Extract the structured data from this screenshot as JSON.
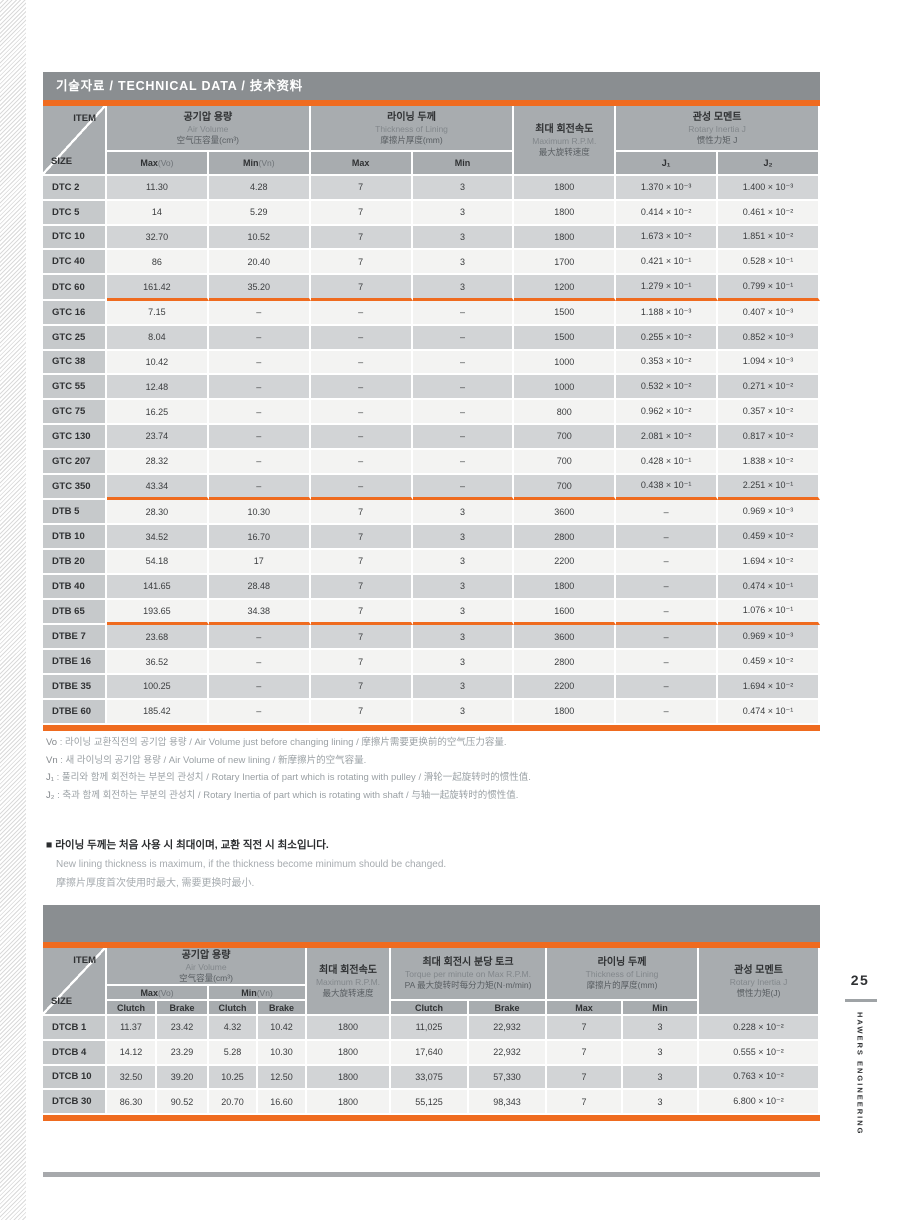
{
  "page": {
    "title": "기술자료 / TECHNICAL DATA / 技术资料",
    "page_number": "25",
    "brand": "HAWERS ENGINEERING",
    "colon": ":",
    "colors": {
      "orange": "#EF6B1F",
      "title_bar_gray": "#8A8E91",
      "header_gray": "#A8ACAF",
      "label_gray": "#C6C9CB",
      "row_gray": "#D2D4D6",
      "row_light": "#F3F3F2"
    }
  },
  "table1": {
    "corner": {
      "item": "ITEM",
      "size": "SIZE"
    },
    "head": {
      "air": {
        "ko": "공기압 용량",
        "en": "Air Volume",
        "cn": "空气压容量(cm³)"
      },
      "lining": {
        "ko": "라이닝 두께",
        "en": "Thickness of Lining",
        "cn": "摩擦片厚度(mm)"
      },
      "rpm": {
        "ko": "최대 회전속도",
        "en": "Maximum R.P.M.",
        "cn": "最大旋转速度"
      },
      "inertia": {
        "ko": "관성 모멘트",
        "en": "Rotary Inertia J",
        "cn": "惯性力矩 J"
      },
      "subs": {
        "max_vo_b": "Max",
        "max_vo_n": "(Vo)",
        "min_vn_b": "Min",
        "min_vn_n": "(Vn)",
        "max": "Max",
        "min": "Min",
        "j1": "J₁",
        "j2": "J₂"
      }
    },
    "rows": [
      {
        "size": "DTC 2",
        "values": [
          "11.30",
          "4.28",
          "7",
          "3",
          "1800",
          "1.370 × 10⁻³",
          "1.400 × 10⁻³"
        ],
        "group_end": false
      },
      {
        "size": "DTC 5",
        "values": [
          "14",
          "5.29",
          "7",
          "3",
          "1800",
          "0.414 × 10⁻²",
          "0.461 × 10⁻²"
        ],
        "group_end": false
      },
      {
        "size": "DTC 10",
        "values": [
          "32.70",
          "10.52",
          "7",
          "3",
          "1800",
          "1.673 × 10⁻²",
          "1.851 × 10⁻²"
        ],
        "group_end": false
      },
      {
        "size": "DTC 40",
        "values": [
          "86",
          "20.40",
          "7",
          "3",
          "1700",
          "0.421 × 10⁻¹",
          "0.528 × 10⁻¹"
        ],
        "group_end": false
      },
      {
        "size": "DTC 60",
        "values": [
          "161.42",
          "35.20",
          "7",
          "3",
          "1200",
          "1.279 × 10⁻¹",
          "0.799 × 10⁻¹"
        ],
        "group_end": true
      },
      {
        "size": "GTC 16",
        "values": [
          "7.15",
          "–",
          "–",
          "–",
          "1500",
          "1.188 × 10⁻³",
          "0.407 × 10⁻³"
        ],
        "group_end": false
      },
      {
        "size": "GTC 25",
        "values": [
          "8.04",
          "–",
          "–",
          "–",
          "1500",
          "0.255 × 10⁻²",
          "0.852 × 10⁻³"
        ],
        "group_end": false
      },
      {
        "size": "GTC 38",
        "values": [
          "10.42",
          "–",
          "–",
          "–",
          "1000",
          "0.353 × 10⁻²",
          "1.094 × 10⁻³"
        ],
        "group_end": false
      },
      {
        "size": "GTC 55",
        "values": [
          "12.48",
          "–",
          "–",
          "–",
          "1000",
          "0.532 × 10⁻²",
          "0.271 × 10⁻²"
        ],
        "group_end": false
      },
      {
        "size": "GTC 75",
        "values": [
          "16.25",
          "–",
          "–",
          "–",
          "800",
          "0.962 × 10⁻²",
          "0.357 × 10⁻²"
        ],
        "group_end": false
      },
      {
        "size": "GTC 130",
        "values": [
          "23.74",
          "–",
          "–",
          "–",
          "700",
          "2.081 × 10⁻²",
          "0.817 × 10⁻²"
        ],
        "group_end": false
      },
      {
        "size": "GTC 207",
        "values": [
          "28.32",
          "–",
          "–",
          "–",
          "700",
          "0.428 × 10⁻¹",
          "1.838 × 10⁻²"
        ],
        "group_end": false
      },
      {
        "size": "GTC 350",
        "values": [
          "43.34",
          "–",
          "–",
          "–",
          "700",
          "0.438 × 10⁻¹",
          "2.251 × 10⁻¹"
        ],
        "group_end": true
      },
      {
        "size": "DTB 5",
        "values": [
          "28.30",
          "10.30",
          "7",
          "3",
          "3600",
          "–",
          "0.969 × 10⁻³"
        ],
        "group_end": false
      },
      {
        "size": "DTB 10",
        "values": [
          "34.52",
          "16.70",
          "7",
          "3",
          "2800",
          "–",
          "0.459 × 10⁻²"
        ],
        "group_end": false
      },
      {
        "size": "DTB 20",
        "values": [
          "54.18",
          "17",
          "7",
          "3",
          "2200",
          "–",
          "1.694 × 10⁻²"
        ],
        "group_end": false
      },
      {
        "size": "DTB 40",
        "values": [
          "141.65",
          "28.48",
          "7",
          "3",
          "1800",
          "–",
          "0.474 × 10⁻¹"
        ],
        "group_end": false
      },
      {
        "size": "DTB 65",
        "values": [
          "193.65",
          "34.38",
          "7",
          "3",
          "1600",
          "–",
          "1.076 × 10⁻¹"
        ],
        "group_end": true
      },
      {
        "size": "DTBE 7",
        "values": [
          "23.68",
          "–",
          "7",
          "3",
          "3600",
          "–",
          "0.969 × 10⁻³"
        ],
        "group_end": false
      },
      {
        "size": "DTBE 16",
        "values": [
          "36.52",
          "–",
          "7",
          "3",
          "2800",
          "–",
          "0.459 × 10⁻²"
        ],
        "group_end": false
      },
      {
        "size": "DTBE 35",
        "values": [
          "100.25",
          "–",
          "7",
          "3",
          "2200",
          "–",
          "1.694 × 10⁻²"
        ],
        "group_end": false
      },
      {
        "size": "DTBE 60",
        "values": [
          "185.42",
          "–",
          "7",
          "3",
          "1800",
          "–",
          "0.474 × 10⁻¹"
        ],
        "group_end": false
      }
    ]
  },
  "footnotes": [
    {
      "term": "Vo",
      "text": "라이닝 교환직전의 공기압 용량 / Air Volume just before changing lining / 摩擦片需要更换前的空气压力容量."
    },
    {
      "term": "Vn",
      "text": "새 라이닝의 공기압 용량 / Air Volume of new lining / 新摩擦片的空气容量."
    },
    {
      "term": "J₁",
      "text": "풀리와 함께 회전하는 부분의 관성치 / Rotary Inertia of part which is rotating with pulley / 滑轮一起旋转时的惯性值."
    },
    {
      "term": "J₂",
      "text": "축과 함께 회전하는 부분의 관성치 / Rotary Inertia of part which is rotating with shaft / 与轴一起旋转时的惯性值."
    }
  ],
  "note": {
    "bullet": "■",
    "ko": "라이닝 두께는 처음 사용 시 최대이며, 교환 직전 시 최소입니다.",
    "en": "New lining thickness is maximum, if the thickness become minimum should be changed.",
    "cn": "摩擦片厚度首次使用时最大, 需要更换时最小."
  },
  "table2": {
    "corner": {
      "item": "ITEM",
      "size": "SIZE"
    },
    "head": {
      "air": {
        "ko": "공기압 용량",
        "en": "Air Volume",
        "cn": "空气容量(cm³)"
      },
      "rpm": {
        "ko": "최대 회전속도",
        "en": "Maximum R.P.M.",
        "cn": "最大旋转速度"
      },
      "torque": {
        "ko": "최대 회전시 분당 토크",
        "en": "Torque per minute on Max R.P.M.",
        "cn": "PA 最大旋转时每分力矩(N·m/min)"
      },
      "lining": {
        "ko": "라이닝 두께",
        "en": "Thickness of Lining",
        "cn": "摩擦片的厚度(mm)"
      },
      "inertia": {
        "ko": "관성 모멘트",
        "en": "Rotary Inertia J",
        "cn": "惯性力矩(J)"
      },
      "subs": {
        "max_vo_b": "Max",
        "max_vo_n": "(Vo)",
        "min_vn_b": "Min",
        "min_vn_n": "(Vn)",
        "clutch": "Clutch",
        "brake": "Brake",
        "max": "Max",
        "min": "Min"
      }
    },
    "rows": [
      {
        "size": "DTCB 1",
        "values": [
          "11.37",
          "23.42",
          "4.32",
          "10.42",
          "1800",
          "11,025",
          "22,932",
          "7",
          "3",
          "0.228 × 10⁻²"
        ],
        "group_end": false
      },
      {
        "size": "DTCB 4",
        "values": [
          "14.12",
          "23.29",
          "5.28",
          "10.30",
          "1800",
          "17,640",
          "22,932",
          "7",
          "3",
          "0.555 × 10⁻²"
        ],
        "group_end": false
      },
      {
        "size": "DTCB 10",
        "values": [
          "32.50",
          "39.20",
          "10.25",
          "12.50",
          "1800",
          "33,075",
          "57,330",
          "7",
          "3",
          "0.763 × 10⁻²"
        ],
        "group_end": false
      },
      {
        "size": "DTCB 30",
        "values": [
          "86.30",
          "90.52",
          "20.70",
          "16.60",
          "1800",
          "55,125",
          "98,343",
          "7",
          "3",
          "6.800 × 10⁻²"
        ],
        "group_end": false
      }
    ]
  }
}
